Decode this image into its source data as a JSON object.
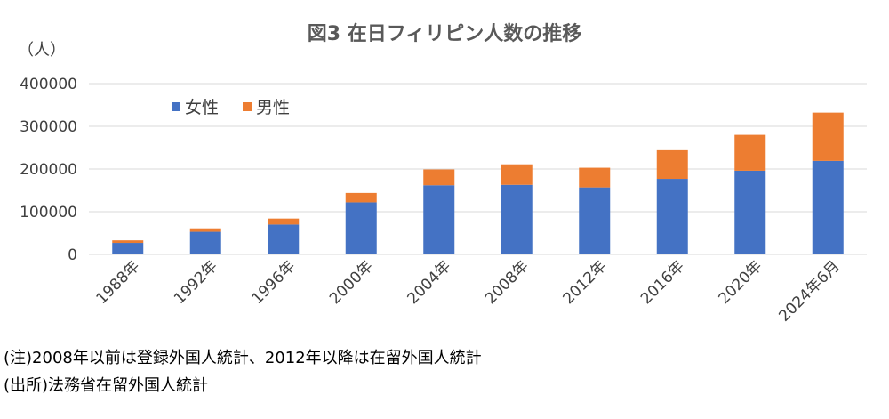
{
  "chart_data": {
    "type": "bar",
    "stacked": true,
    "title": "図3 在日フィリピン人数の推移",
    "unit_label": "（人）",
    "categories": [
      "1988年",
      "1992年",
      "1996年",
      "2000年",
      "2004年",
      "2008年",
      "2012年",
      "2016年",
      "2020年",
      "2024年6月"
    ],
    "series": [
      {
        "name": "女性",
        "color": "#4472C4",
        "values": [
          27000,
          53000,
          70000,
          122000,
          162000,
          163000,
          157000,
          177000,
          196000,
          219000
        ]
      },
      {
        "name": "男性",
        "color": "#ED7D31",
        "values": [
          6000,
          8000,
          14000,
          22000,
          37000,
          48000,
          46000,
          67000,
          84000,
          113000
        ]
      }
    ],
    "ylim": [
      0,
      400000
    ],
    "yticks": [
      "0",
      "100000",
      "200000",
      "300000",
      "400000"
    ],
    "grid": true,
    "legend_position": "top-left"
  },
  "notes": [
    "(注)2008年以前は登録外国人統計、2012年以降は在留外国人統計",
    "(出所)法務省在留外国人統計"
  ]
}
